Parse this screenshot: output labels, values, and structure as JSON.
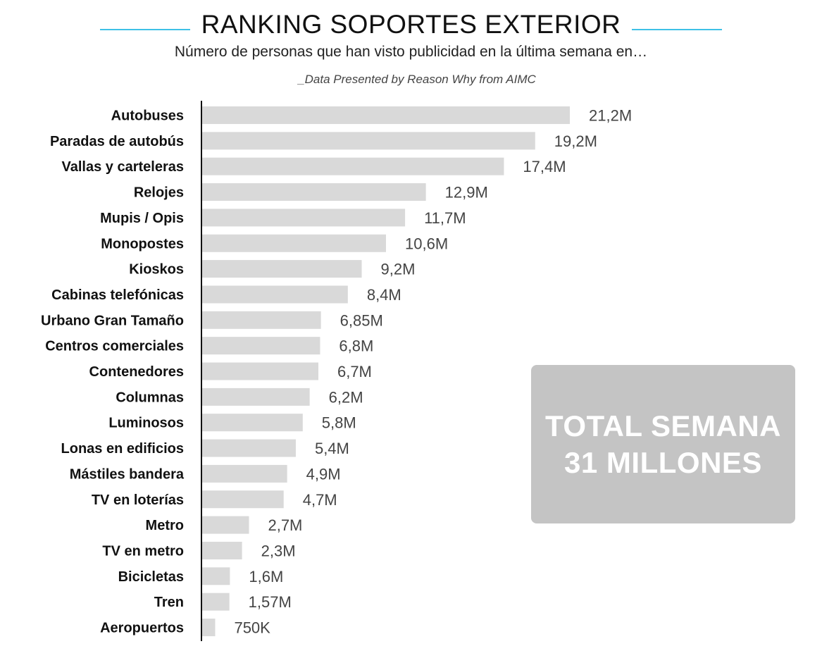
{
  "header": {
    "title": "RANKING SOPORTES EXTERIOR",
    "subtitle": "Número de personas que han visto publicidad en la última semana en…",
    "source": "_Data Presented by Reason Why from AIMC",
    "accent_color": "#3fc1e6"
  },
  "total_box": {
    "line1": "TOTAL SEMANA",
    "line2": "31 MILLONES",
    "background_color": "#c4c4c4"
  },
  "chart_data": {
    "type": "bar",
    "orientation": "horizontal",
    "title": "RANKING SOPORTES EXTERIOR",
    "xlabel": "",
    "ylabel": "",
    "xlim": [
      0,
      21.2
    ],
    "grid": false,
    "unit": "millones",
    "bar_color": "#d9d9d9",
    "highlight_color": "#e6157e",
    "label_color": "#444444",
    "categories": [
      "Autobuses",
      "Paradas de autobús",
      "Vallas y carteleras",
      "Relojes",
      "Mupis / Opis",
      "Monopostes",
      "Kioskos",
      "Cabinas telefónicas",
      "Urbano Gran Tamaño",
      "Centros comerciales",
      "Contenedores",
      "Columnas",
      "Luminosos",
      "Lonas en edificios",
      "Mástiles bandera",
      "TV en loterías",
      "Metro",
      "TV en metro",
      "Bicicletas",
      "Tren",
      "Aeropuertos"
    ],
    "values": [
      21.2,
      19.2,
      17.4,
      12.9,
      11.7,
      10.6,
      9.2,
      8.4,
      6.85,
      6.8,
      6.7,
      6.2,
      5.8,
      5.4,
      4.9,
      4.7,
      2.7,
      2.3,
      1.6,
      1.57,
      0.75
    ],
    "value_labels": [
      "21,2M",
      "19,2M",
      "17,4M",
      "12,9M",
      "11,7M",
      "10,6M",
      "9,2M",
      "8,4M",
      "6,85M",
      "6,8M",
      "6,7M",
      "6,2M",
      "5,8M",
      "5,4M",
      "4,9M",
      "4,7M",
      "2,7M",
      "2,3M",
      "1,6M",
      "1,57M",
      "750K"
    ]
  }
}
